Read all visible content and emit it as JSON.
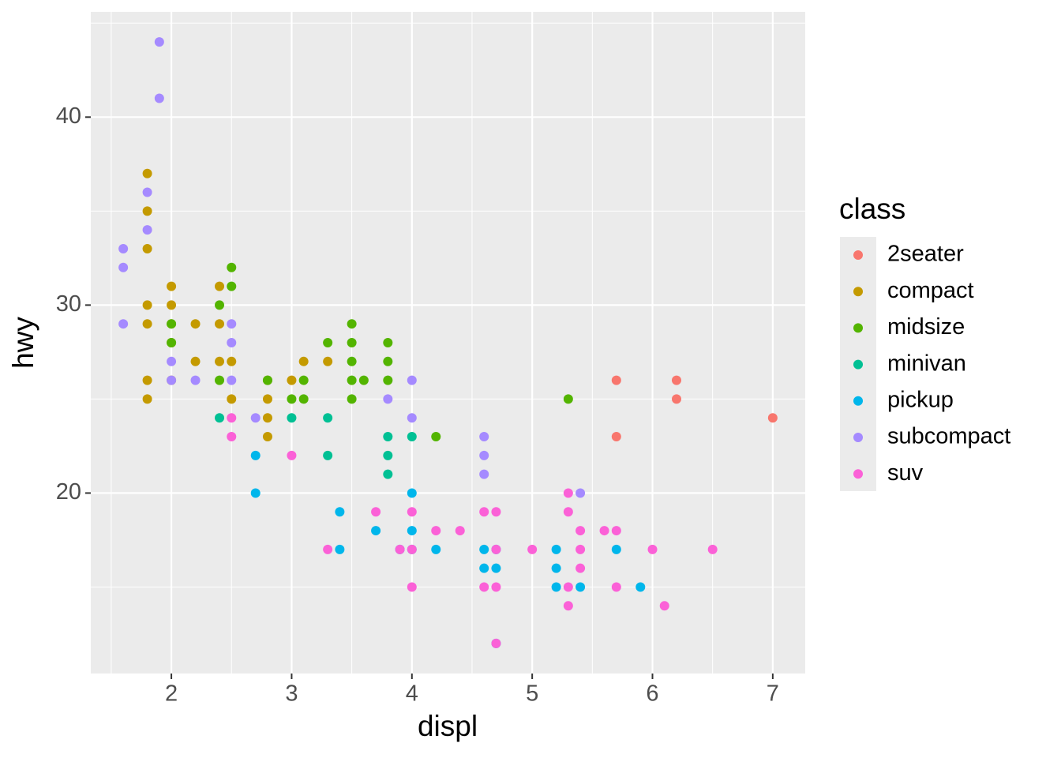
{
  "chart_data": {
    "type": "scatter",
    "x_label": "displ",
    "y_label": "hwy",
    "legend_title": "class",
    "xlim": [
      1.33,
      7.27
    ],
    "ylim": [
      10.4,
      45.6
    ],
    "xticks": [
      2,
      3,
      4,
      5,
      6,
      7
    ],
    "yticks": [
      20,
      30,
      40
    ],
    "x_minor_ticks": [
      1.5,
      2.5,
      3.5,
      4.5,
      5.5,
      6.5
    ],
    "y_minor_ticks": [
      15,
      25,
      35,
      45
    ],
    "grid": true,
    "legend_position": "right",
    "series": [
      {
        "name": "2seater",
        "color": "#F8766D",
        "x": [
          5.7,
          6.2,
          6.2,
          7.0,
          5.7
        ],
        "values": [
          26,
          26,
          25,
          24,
          23
        ]
      },
      {
        "name": "compact",
        "color": "#C49A00",
        "x": [
          1.8,
          1.8,
          1.8,
          1.8,
          1.8,
          1.8,
          1.8,
          2.0,
          2.0,
          2.0,
          2.0,
          2.0,
          2.2,
          2.2,
          2.4,
          2.4,
          2.4,
          2.5,
          2.5,
          2.8,
          2.8,
          2.8,
          2.8,
          3.0,
          3.1,
          3.3
        ],
        "values": [
          37,
          35,
          33,
          30,
          29,
          26,
          25,
          31,
          30,
          29,
          28,
          26,
          29,
          27,
          31,
          29,
          27,
          27,
          25,
          25,
          24,
          23,
          26,
          26,
          27,
          27
        ]
      },
      {
        "name": "midsize",
        "color": "#53B400",
        "x": [
          2.5,
          2.5,
          2.4,
          2.4,
          2.0,
          2.0,
          2.8,
          3.0,
          3.1,
          3.1,
          3.3,
          3.5,
          3.5,
          3.5,
          3.5,
          3.5,
          3.6,
          3.8,
          3.8,
          3.8,
          4.2,
          5.3
        ],
        "values": [
          32,
          31,
          30,
          26,
          29,
          28,
          26,
          25,
          26,
          25,
          28,
          29,
          28,
          27,
          26,
          25,
          26,
          28,
          27,
          26,
          23,
          25
        ]
      },
      {
        "name": "minivan",
        "color": "#00C094",
        "x": [
          2.4,
          3.0,
          3.3,
          3.3,
          3.8,
          3.8,
          3.8,
          4.0
        ],
        "values": [
          24,
          24,
          24,
          22,
          23,
          22,
          21,
          23
        ]
      },
      {
        "name": "pickup",
        "color": "#00B6EB",
        "x": [
          2.7,
          2.7,
          3.4,
          3.4,
          3.7,
          4.0,
          4.0,
          4.2,
          4.6,
          4.6,
          4.7,
          4.7,
          4.7,
          5.2,
          5.2,
          5.2,
          5.4,
          5.7,
          5.9,
          3.9,
          4.0
        ],
        "values": [
          22,
          20,
          19,
          17,
          18,
          20,
          18,
          17,
          17,
          16,
          17,
          16,
          12,
          17,
          16,
          15,
          15,
          17,
          15,
          17,
          17
        ]
      },
      {
        "name": "subcompact",
        "color": "#A58AFF",
        "x": [
          1.6,
          1.6,
          1.6,
          1.8,
          1.8,
          1.9,
          1.9,
          2.0,
          2.0,
          2.2,
          2.5,
          2.5,
          2.5,
          2.7,
          3.8,
          4.0,
          4.0,
          4.6,
          4.6,
          4.6,
          5.4
        ],
        "values": [
          33,
          32,
          29,
          36,
          34,
          44,
          41,
          27,
          26,
          26,
          29,
          28,
          26,
          24,
          25,
          26,
          24,
          23,
          22,
          21,
          20
        ]
      },
      {
        "name": "suv",
        "color": "#FB61D7",
        "x": [
          2.5,
          2.5,
          3.0,
          3.3,
          3.7,
          3.9,
          4.0,
          4.0,
          4.0,
          4.2,
          4.4,
          4.6,
          4.6,
          4.7,
          4.7,
          4.7,
          4.7,
          5.0,
          5.3,
          5.3,
          5.3,
          5.3,
          5.4,
          5.4,
          5.4,
          5.6,
          5.7,
          5.7,
          6.0,
          6.1,
          6.5
        ],
        "values": [
          24,
          23,
          22,
          17,
          19,
          17,
          19,
          17,
          15,
          18,
          18,
          19,
          15,
          19,
          17,
          15,
          12,
          17,
          20,
          19,
          15,
          14,
          18,
          17,
          16,
          18,
          18,
          15,
          17,
          14,
          17
        ]
      }
    ]
  }
}
